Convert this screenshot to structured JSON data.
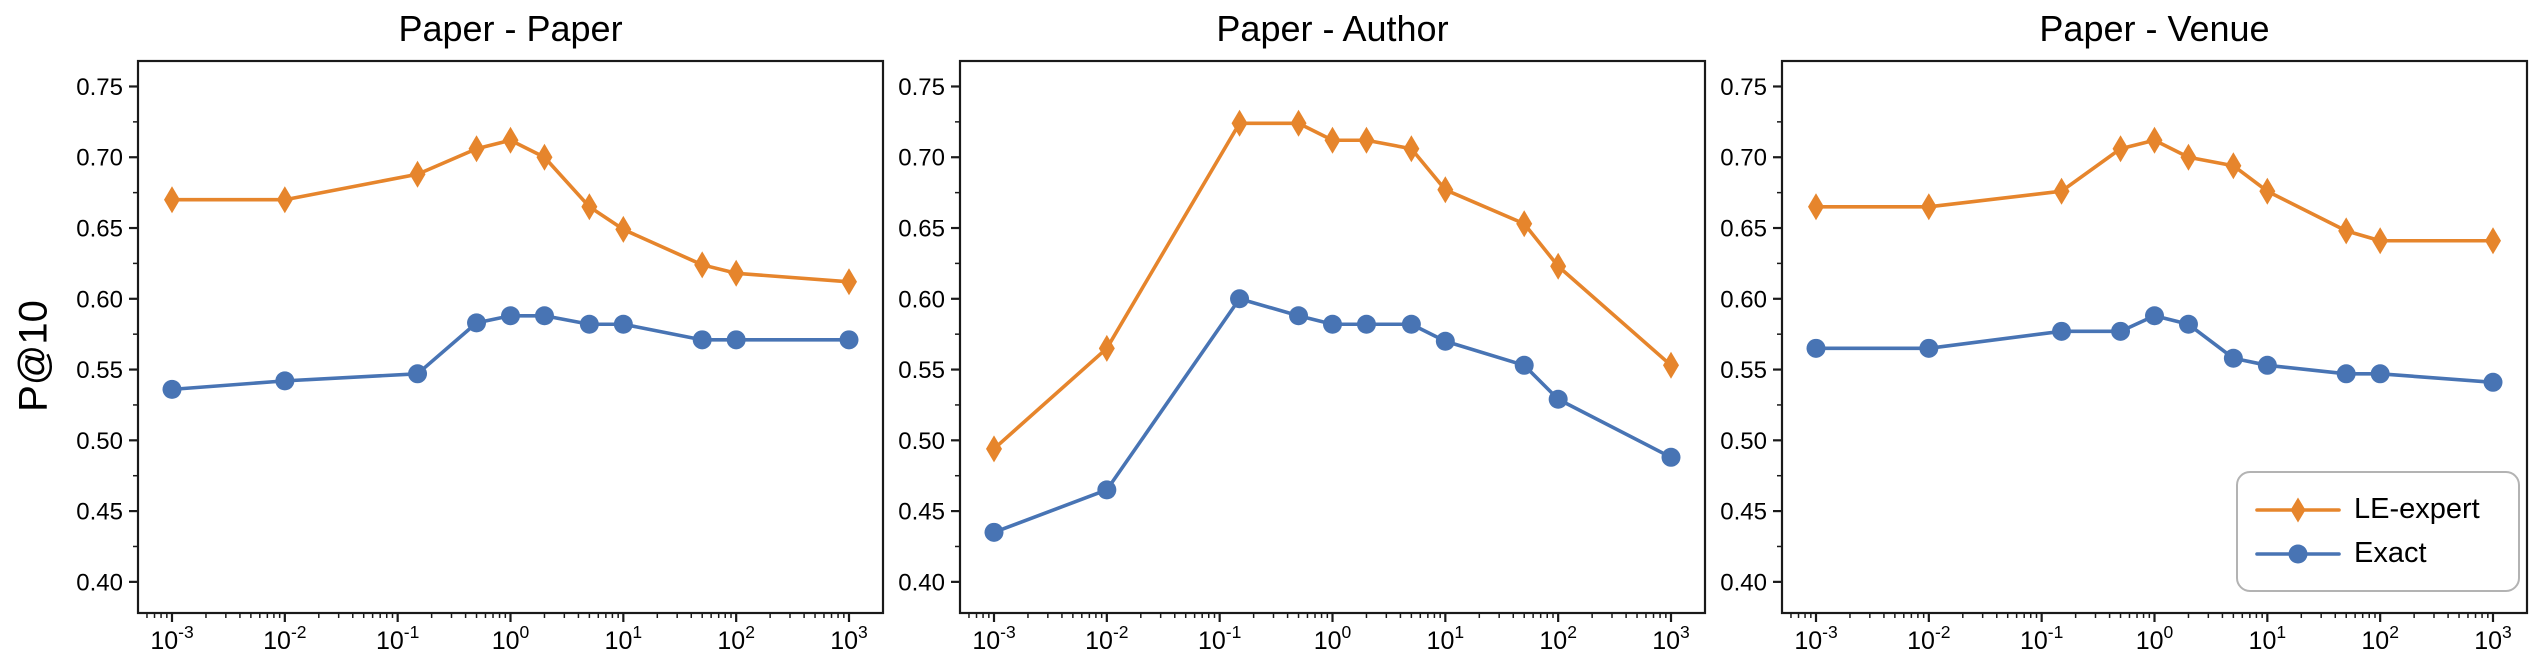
{
  "figure": {
    "ylabel": "P@10",
    "background_color": "#ffffff",
    "spine_color": "#1a1a1a",
    "text_color": "#000000"
  },
  "legend": {
    "position": "lower right of third subplot",
    "border_color": "#b3b3b3",
    "items": [
      {
        "label": "LE-expert",
        "marker": "thin-diamond",
        "color": "#e6852c"
      },
      {
        "label": "Exact",
        "marker": "circle",
        "color": "#4874b4"
      }
    ]
  },
  "chart_data": [
    {
      "type": "line",
      "title": "Paper - Paper",
      "xlabel": "",
      "ylabel": "P@10",
      "x_scale": "log",
      "x": [
        0.001,
        0.01,
        0.15,
        0.5,
        1,
        2,
        5,
        10,
        50,
        100,
        1000
      ],
      "xlim": [
        0.0005,
        2000
      ],
      "ylim": [
        0.378,
        0.768
      ],
      "y_ticks": [
        0.4,
        0.45,
        0.5,
        0.55,
        0.6,
        0.65,
        0.7,
        0.75
      ],
      "y_tick_labels": [
        "0.40",
        "0.45",
        "0.50",
        "0.55",
        "0.60",
        "0.65",
        "0.70",
        "0.75"
      ],
      "x_tick_exponents": [
        -3,
        -2,
        -1,
        0,
        1,
        2,
        3
      ],
      "grid": false,
      "legend_shown": false,
      "series": [
        {
          "name": "LE-expert",
          "color": "#e6852c",
          "marker": "thin-diamond",
          "values": [
            0.67,
            0.67,
            0.688,
            0.706,
            0.712,
            0.7,
            0.665,
            0.649,
            0.624,
            0.618,
            0.612
          ]
        },
        {
          "name": "Exact",
          "color": "#4874b4",
          "marker": "circle",
          "values": [
            0.536,
            0.542,
            0.547,
            0.583,
            0.588,
            0.588,
            0.582,
            0.582,
            0.571,
            0.571,
            0.571
          ]
        }
      ]
    },
    {
      "type": "line",
      "title": "Paper - Author",
      "xlabel": "",
      "ylabel": "",
      "x_scale": "log",
      "x": [
        0.001,
        0.01,
        0.15,
        0.5,
        1,
        2,
        5,
        10,
        50,
        100,
        1000
      ],
      "xlim": [
        0.0005,
        2000
      ],
      "ylim": [
        0.378,
        0.768
      ],
      "y_ticks": [
        0.4,
        0.45,
        0.5,
        0.55,
        0.6,
        0.65,
        0.7,
        0.75
      ],
      "y_tick_labels": [
        "0.40",
        "0.45",
        "0.50",
        "0.55",
        "0.60",
        "0.65",
        "0.70",
        "0.75"
      ],
      "x_tick_exponents": [
        -3,
        -2,
        -1,
        0,
        1,
        2,
        3
      ],
      "grid": false,
      "legend_shown": false,
      "series": [
        {
          "name": "LE-expert",
          "color": "#e6852c",
          "marker": "thin-diamond",
          "values": [
            0.494,
            0.565,
            0.724,
            0.724,
            0.712,
            0.712,
            0.706,
            0.677,
            0.653,
            0.623,
            0.553
          ]
        },
        {
          "name": "Exact",
          "color": "#4874b4",
          "marker": "circle",
          "values": [
            0.435,
            0.465,
            0.6,
            0.588,
            0.582,
            0.582,
            0.582,
            0.57,
            0.553,
            0.529,
            0.488
          ]
        }
      ]
    },
    {
      "type": "line",
      "title": "Paper - Venue",
      "xlabel": "",
      "ylabel": "",
      "x_scale": "log",
      "x": [
        0.001,
        0.01,
        0.15,
        0.5,
        1,
        2,
        5,
        10,
        50,
        100,
        1000
      ],
      "xlim": [
        0.0005,
        2000
      ],
      "ylim": [
        0.378,
        0.768
      ],
      "y_ticks": [
        0.4,
        0.45,
        0.5,
        0.55,
        0.6,
        0.65,
        0.7,
        0.75
      ],
      "y_tick_labels": [
        "0.40",
        "0.45",
        "0.50",
        "0.55",
        "0.60",
        "0.65",
        "0.70",
        "0.75"
      ],
      "x_tick_exponents": [
        -3,
        -2,
        -1,
        0,
        1,
        2,
        3
      ],
      "grid": false,
      "legend_shown": true,
      "series": [
        {
          "name": "LE-expert",
          "color": "#e6852c",
          "marker": "thin-diamond",
          "values": [
            0.665,
            0.665,
            0.676,
            0.706,
            0.712,
            0.7,
            0.694,
            0.676,
            0.648,
            0.641,
            0.641
          ]
        },
        {
          "name": "Exact",
          "color": "#4874b4",
          "marker": "circle",
          "values": [
            0.565,
            0.565,
            0.577,
            0.577,
            0.588,
            0.582,
            0.558,
            0.553,
            0.547,
            0.547,
            0.541
          ]
        }
      ]
    }
  ]
}
